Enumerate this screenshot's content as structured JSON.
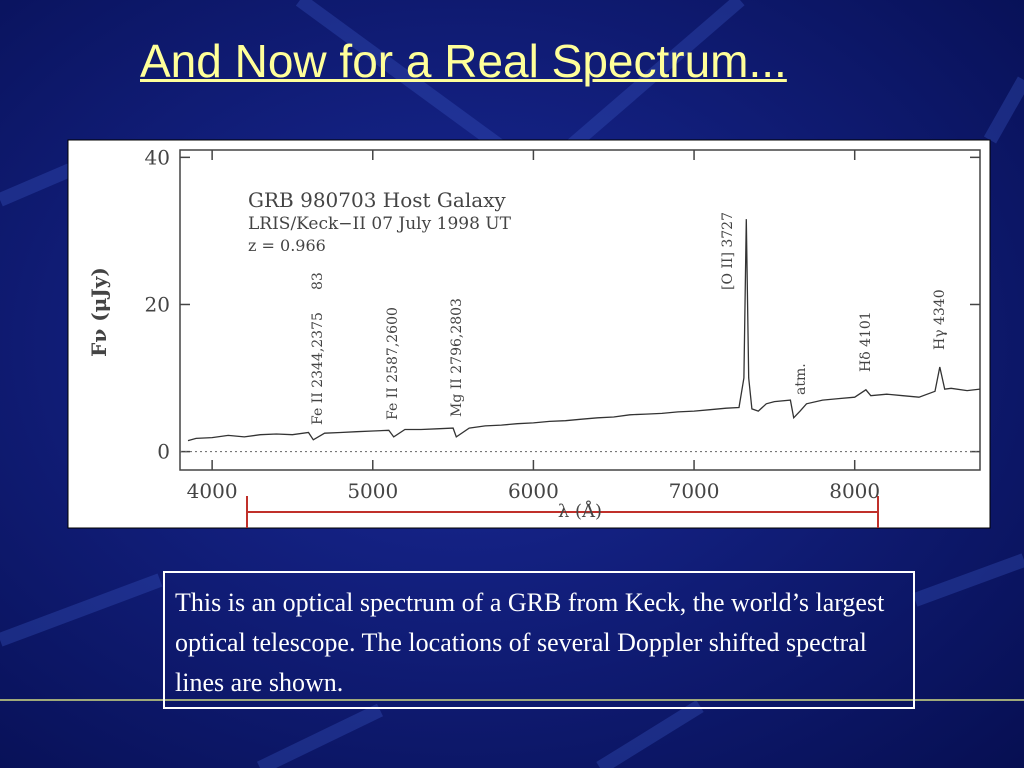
{
  "slide": {
    "title": "And Now for a Real Spectrum...",
    "caption": "This is an optical spectrum of a GRB from Keck, the world’s largest optical telescope.  The locations of several Doppler shifted spectral lines are shown."
  },
  "chart_data": {
    "type": "line",
    "xlabel": "λ (Å)",
    "ylabel": "Fν (μJy)",
    "annotations": [
      "GRB 980703 Host Galaxy",
      "LRIS/Keck−II 07 July 1998 UT",
      "z = 0.966",
      "Fe II 2344,2375",
      "83",
      "Fe II 2587,2600",
      "Mg II 2796,2803",
      "[O II] 3727",
      "atm.",
      "Hδ 4101",
      "Hγ 4340"
    ],
    "x": [
      3850,
      3900,
      4000,
      4100,
      4200,
      4300,
      4400,
      4500,
      4600,
      4630,
      4700,
      4800,
      4900,
      5000,
      5100,
      5130,
      5200,
      5300,
      5400,
      5500,
      5520,
      5600,
      5700,
      5800,
      5900,
      6000,
      6100,
      6200,
      6300,
      6400,
      6500,
      6600,
      6700,
      6800,
      6900,
      7000,
      7100,
      7200,
      7280,
      7310,
      7325,
      7340,
      7360,
      7400,
      7450,
      7500,
      7600,
      7620,
      7660,
      7700,
      7800,
      7900,
      8000,
      8070,
      8100,
      8200,
      8300,
      8400,
      8500,
      8530,
      8560,
      8600,
      8700,
      8780
    ],
    "values": [
      1.5,
      1.8,
      1.9,
      2.2,
      2.0,
      2.3,
      2.4,
      2.3,
      2.6,
      1.6,
      2.5,
      2.6,
      2.7,
      2.8,
      2.9,
      2.0,
      3.0,
      3.0,
      3.1,
      3.2,
      2.0,
      3.2,
      3.5,
      3.6,
      3.8,
      3.9,
      4.1,
      4.2,
      4.4,
      4.6,
      4.7,
      5.0,
      5.1,
      5.2,
      5.4,
      5.5,
      5.7,
      5.9,
      6.0,
      10,
      31.6,
      10,
      5.8,
      5.5,
      6.5,
      6.8,
      7.0,
      4.6,
      5.5,
      6.5,
      7.0,
      7.2,
      7.4,
      8.4,
      7.6,
      7.8,
      7.6,
      7.4,
      8.2,
      11.5,
      8.5,
      8.6,
      8.3,
      8.5
    ],
    "color": "#333333",
    "xlim": [
      3800,
      8780
    ],
    "ylim": [
      -2.5,
      41
    ],
    "xticks": [
      4000,
      5000,
      6000,
      7000,
      8000
    ],
    "yticks": [
      0,
      20,
      40
    ]
  }
}
